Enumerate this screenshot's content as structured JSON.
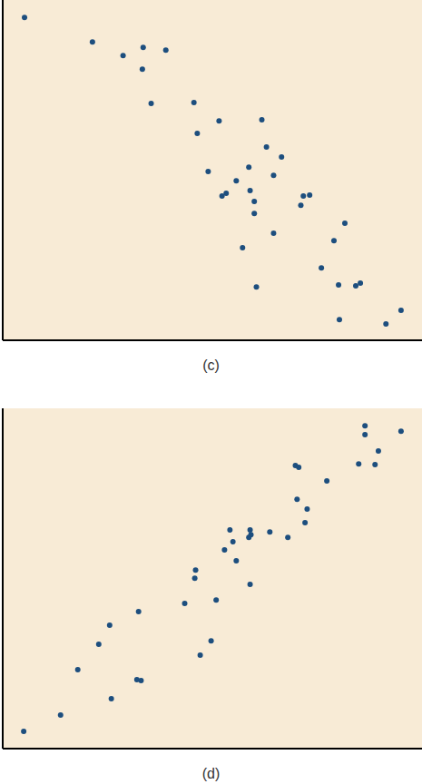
{
  "chart_data": [
    {
      "type": "scatter",
      "title": "(c)",
      "xlim": [
        0,
        100
      ],
      "ylim": [
        0,
        100
      ],
      "tick_labels": false,
      "color": "#1d4e7e",
      "marker": "circle",
      "x": [
        5.2,
        21.4,
        28.7,
        33.5,
        33.3,
        38.9,
        35.4,
        45.6,
        51.6,
        46.4,
        61.8,
        62.9,
        66.5,
        58.7,
        64.6,
        49.0,
        55.7,
        59.0,
        53.3,
        52.3,
        60.0,
        60.0,
        71.7,
        73.2,
        71.1,
        64.6,
        81.6,
        79.0,
        57.2,
        76.0,
        80.1,
        85.3,
        84.2,
        60.5,
        80.3,
        91.4,
        95.0
      ],
      "values": [
        94.9,
        87.7,
        83.7,
        86.1,
        79.7,
        85.3,
        69.6,
        69.9,
        64.5,
        60.8,
        64.8,
        56.8,
        53.9,
        50.9,
        48.5,
        49.6,
        46.9,
        44.0,
        43.2,
        42.4,
        40.8,
        37.3,
        42.4,
        42.7,
        39.7,
        31.5,
        34.4,
        29.3,
        27.2,
        21.3,
        16.3,
        16.8,
        16.0,
        15.7,
        6.1,
        4.8,
        8.8
      ]
    },
    {
      "type": "scatter",
      "title": "(d)",
      "xlim": [
        0,
        100
      ],
      "ylim": [
        0,
        100
      ],
      "tick_labels": false,
      "color": "#1d4e7e",
      "marker": "circle",
      "x": [
        5.0,
        13.8,
        25.9,
        17.9,
        32.0,
        33.0,
        22.9,
        25.5,
        32.4,
        47.1,
        49.7,
        43.4,
        50.9,
        45.8,
        46.0,
        59.0,
        55.7,
        52.9,
        54.9,
        54.2,
        59.0,
        58.7,
        59.2,
        63.7,
        68.0,
        72.1,
        72.6,
        70.2,
        77.3,
        69.8,
        70.6,
        84.9,
        88.8,
        89.6,
        86.4,
        86.4,
        95.0
      ],
      "values": [
        5.1,
        9.9,
        14.7,
        23.2,
        20.3,
        20.0,
        30.7,
        36.3,
        40.3,
        27.5,
        31.7,
        42.7,
        43.7,
        50.1,
        52.5,
        48.3,
        55.2,
        58.4,
        60.8,
        64.3,
        64.3,
        62.1,
        62.9,
        63.7,
        62.1,
        66.4,
        70.4,
        73.3,
        78.7,
        83.2,
        82.7,
        83.7,
        83.5,
        87.5,
        92.3,
        94.9,
        93.3
      ]
    }
  ]
}
